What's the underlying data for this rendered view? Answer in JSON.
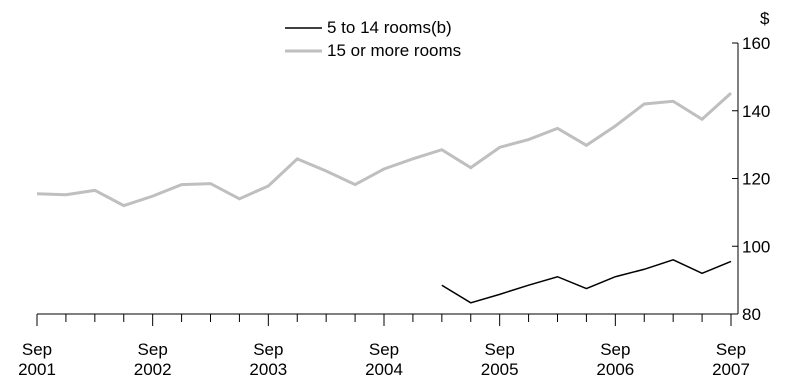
{
  "chart_data": {
    "type": "line",
    "title": "",
    "xlabel": "",
    "ylabel": "$",
    "ylim": [
      80,
      160
    ],
    "yticks": [
      80,
      100,
      120,
      140,
      160
    ],
    "grid": false,
    "legend_position": "top-center",
    "x_tick_labels": [
      {
        "month": "Sep",
        "year": "2001"
      },
      {
        "month": "Sep",
        "year": "2002"
      },
      {
        "month": "Sep",
        "year": "2003"
      },
      {
        "month": "Sep",
        "year": "2004"
      },
      {
        "month": "Sep",
        "year": "2005"
      },
      {
        "month": "Sep",
        "year": "2006"
      },
      {
        "month": "Sep",
        "year": "2007"
      }
    ],
    "x": [
      "Sep 2001",
      "Dec 2001",
      "Mar 2002",
      "Jun 2002",
      "Sep 2002",
      "Dec 2002",
      "Mar 2003",
      "Jun 2003",
      "Sep 2003",
      "Dec 2003",
      "Mar 2004",
      "Jun 2004",
      "Sep 2004",
      "Dec 2004",
      "Mar 2005",
      "Jun 2005",
      "Sep 2005",
      "Dec 2005",
      "Mar 2006",
      "Jun 2006",
      "Sep 2006",
      "Dec 2006",
      "Mar 2007",
      "Jun 2007",
      "Sep 2007"
    ],
    "series": [
      {
        "name": "5 to 14 rooms(b)",
        "color": "#000000",
        "values": [
          null,
          null,
          null,
          null,
          null,
          null,
          null,
          null,
          null,
          null,
          null,
          null,
          null,
          null,
          88.5,
          83.3,
          85.8,
          88.5,
          91.0,
          87.5,
          91.0,
          93.2,
          96.0,
          92.0,
          95.5
        ]
      },
      {
        "name": "15 or more rooms",
        "color": "#bfbfbf",
        "values": [
          115.5,
          115.2,
          116.5,
          112.0,
          114.8,
          118.2,
          118.5,
          114.0,
          117.8,
          125.8,
          122.2,
          118.2,
          122.8,
          125.8,
          128.5,
          123.2,
          129.2,
          131.5,
          134.8,
          129.8,
          135.5,
          142.0,
          142.8,
          137.5,
          145.2
        ]
      }
    ]
  }
}
